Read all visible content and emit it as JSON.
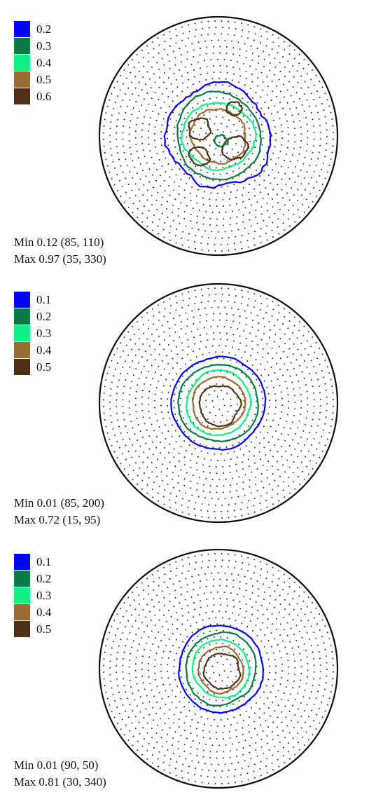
{
  "chart_data": [
    {
      "type": "contour",
      "legend": [
        {
          "label": "0.2",
          "color": "#0000ff"
        },
        {
          "label": "0.3",
          "color": "#0b7a45"
        },
        {
          "label": "0.4",
          "color": "#10f08a"
        },
        {
          "label": "0.5",
          "color": "#9c6a35"
        },
        {
          "label": "0.6",
          "color": "#4e3118"
        }
      ],
      "min_text": "Min 0.12 (85, 110)",
      "max_text": "Max 0.97 (35, 330)",
      "contours": [
        {
          "level": 0.2,
          "color": "#0000ff",
          "radius": 0.43,
          "rough": 0.16,
          "seed": 1,
          "cx": 0,
          "cy": 0
        },
        {
          "level": 0.3,
          "color": "#0b7a45",
          "radius": 0.36,
          "rough": 0.1,
          "seed": 2,
          "cx": 0,
          "cy": 0
        },
        {
          "level": 0.4,
          "color": "#10f08a",
          "radius": 0.29,
          "rough": 0.11,
          "seed": 3,
          "cx": 0,
          "cy": 0
        },
        {
          "level": 0.5,
          "color": "#9c6a35",
          "radius": 0.23,
          "rough": 0.14,
          "seed": 4,
          "cx": 0,
          "cy": 0
        },
        {
          "level": 0.6,
          "color": "#4e3118",
          "radius": 0.09,
          "rough": 0.28,
          "seed": 5,
          "cx": -0.16,
          "cy": -0.06
        },
        {
          "level": 0.6,
          "color": "#4e3118",
          "radius": 0.06,
          "rough": 0.3,
          "seed": 6,
          "cx": 0.13,
          "cy": -0.23
        },
        {
          "level": 0.6,
          "color": "#4e3118",
          "radius": 0.08,
          "rough": 0.28,
          "seed": 7,
          "cx": -0.16,
          "cy": 0.17
        },
        {
          "level": 0.6,
          "color": "#4e3118",
          "radius": 0.1,
          "rough": 0.25,
          "seed": 8,
          "cx": 0.14,
          "cy": 0.1
        },
        {
          "level": 0.3,
          "color": "#0b7a45",
          "radius": 0.05,
          "rough": 0.35,
          "seed": 9,
          "cx": 0.02,
          "cy": 0.04
        }
      ]
    },
    {
      "type": "contour",
      "legend": [
        {
          "label": "0.1",
          "color": "#0000ff"
        },
        {
          "label": "0.2",
          "color": "#0b7a45"
        },
        {
          "label": "0.3",
          "color": "#10f08a"
        },
        {
          "label": "0.4",
          "color": "#9c6a35"
        },
        {
          "label": "0.5",
          "color": "#4e3118"
        }
      ],
      "min_text": "Min 0.01 (85, 200)",
      "max_text": "Max 0.72 (15, 95)",
      "contours": [
        {
          "level": 0.1,
          "color": "#0000ff",
          "radius": 0.39,
          "rough": 0.05,
          "seed": 11,
          "cx": 0,
          "cy": 0
        },
        {
          "level": 0.2,
          "color": "#0b7a45",
          "radius": 0.33,
          "rough": 0.06,
          "seed": 12,
          "cx": 0,
          "cy": 0
        },
        {
          "level": 0.3,
          "color": "#10f08a",
          "radius": 0.27,
          "rough": 0.06,
          "seed": 13,
          "cx": 0,
          "cy": 0
        },
        {
          "level": 0.4,
          "color": "#9c6a35",
          "radius": 0.22,
          "rough": 0.08,
          "seed": 14,
          "cx": 0,
          "cy": 0
        },
        {
          "level": 0.5,
          "color": "#4e3118",
          "radius": 0.17,
          "rough": 0.12,
          "seed": 15,
          "cx": 0.01,
          "cy": 0.02
        }
      ]
    },
    {
      "type": "contour",
      "legend": [
        {
          "label": "0.1",
          "color": "#0000ff"
        },
        {
          "label": "0.2",
          "color": "#0b7a45"
        },
        {
          "label": "0.3",
          "color": "#10f08a"
        },
        {
          "label": "0.4",
          "color": "#9c6a35"
        },
        {
          "label": "0.5",
          "color": "#4e3118"
        }
      ],
      "min_text": "Min 0.01 (90, 50)",
      "max_text": "Max 0.81 (30, 340)",
      "contours": [
        {
          "level": 0.1,
          "color": "#0000ff",
          "radius": 0.36,
          "rough": 0.07,
          "seed": 21,
          "cx": 0.02,
          "cy": 0
        },
        {
          "level": 0.2,
          "color": "#0b7a45",
          "radius": 0.3,
          "rough": 0.07,
          "seed": 22,
          "cx": 0.02,
          "cy": 0
        },
        {
          "level": 0.3,
          "color": "#10f08a",
          "radius": 0.24,
          "rough": 0.09,
          "seed": 23,
          "cx": 0.02,
          "cy": 0
        },
        {
          "level": 0.4,
          "color": "#9c6a35",
          "radius": 0.19,
          "rough": 0.12,
          "seed": 24,
          "cx": 0.02,
          "cy": 0.01
        },
        {
          "level": 0.5,
          "color": "#4e3118",
          "radius": 0.15,
          "rough": 0.16,
          "seed": 25,
          "cx": 0.03,
          "cy": 0.02
        }
      ]
    }
  ]
}
